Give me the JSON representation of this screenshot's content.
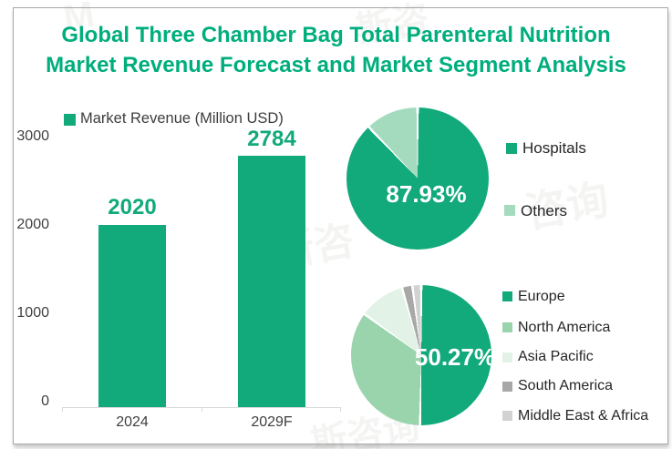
{
  "page": {
    "title_line1": "Global Three Chamber Bag Total Parenteral Nutrition",
    "title_line2": "Market Revenue Forecast and Market Segment Analysis"
  },
  "colors": {
    "title_green": "#00AE7D",
    "accent_green": "#12A97B",
    "light_green": "#A4DBBE",
    "medium_green": "#99D4AD",
    "pale_green": "#E2F2E7",
    "gray": "#A8A8A8",
    "light_gray": "#D2D2D2",
    "axis_text": "#3F3F3F",
    "axis_line": "#D9D9D9"
  },
  "watermarks": [
    "M",
    "斯咨",
    "咨询",
    "斯咨",
    "斯咨询"
  ],
  "chart_data": [
    {
      "type": "bar",
      "legend": "Market Revenue (Million USD)",
      "categories": [
        "2024",
        "2029F"
      ],
      "values": [
        2020,
        2784
      ],
      "data_labels": [
        "2020",
        "2784"
      ],
      "xlabel": "",
      "ylabel": "",
      "ylim": [
        0,
        3000
      ],
      "yticks": [
        0,
        1000,
        2000,
        3000
      ],
      "grid": false,
      "bar_color": "#12A97B",
      "legend_position": "top"
    },
    {
      "type": "pie",
      "title": "",
      "categories": [
        "Hospitals",
        "Others"
      ],
      "values": [
        87.93,
        12.07
      ],
      "colors": [
        "#12A97B",
        "#A4DBBE"
      ],
      "data_label": "87.93%",
      "data_label_slice": "Hospitals",
      "legend_position": "right"
    },
    {
      "type": "pie",
      "title": "",
      "categories": [
        "Europe",
        "North America",
        "Asia Pacific",
        "South America",
        "Middle East & Africa"
      ],
      "values": [
        50.27,
        34.7,
        10.6,
        2.4,
        2.03
      ],
      "colors": [
        "#12A97B",
        "#99D4AD",
        "#E2F2E7",
        "#A8A8A8",
        "#D2D2D2"
      ],
      "data_label": "50.27%",
      "data_label_slice": "Europe",
      "legend_position": "right"
    }
  ]
}
